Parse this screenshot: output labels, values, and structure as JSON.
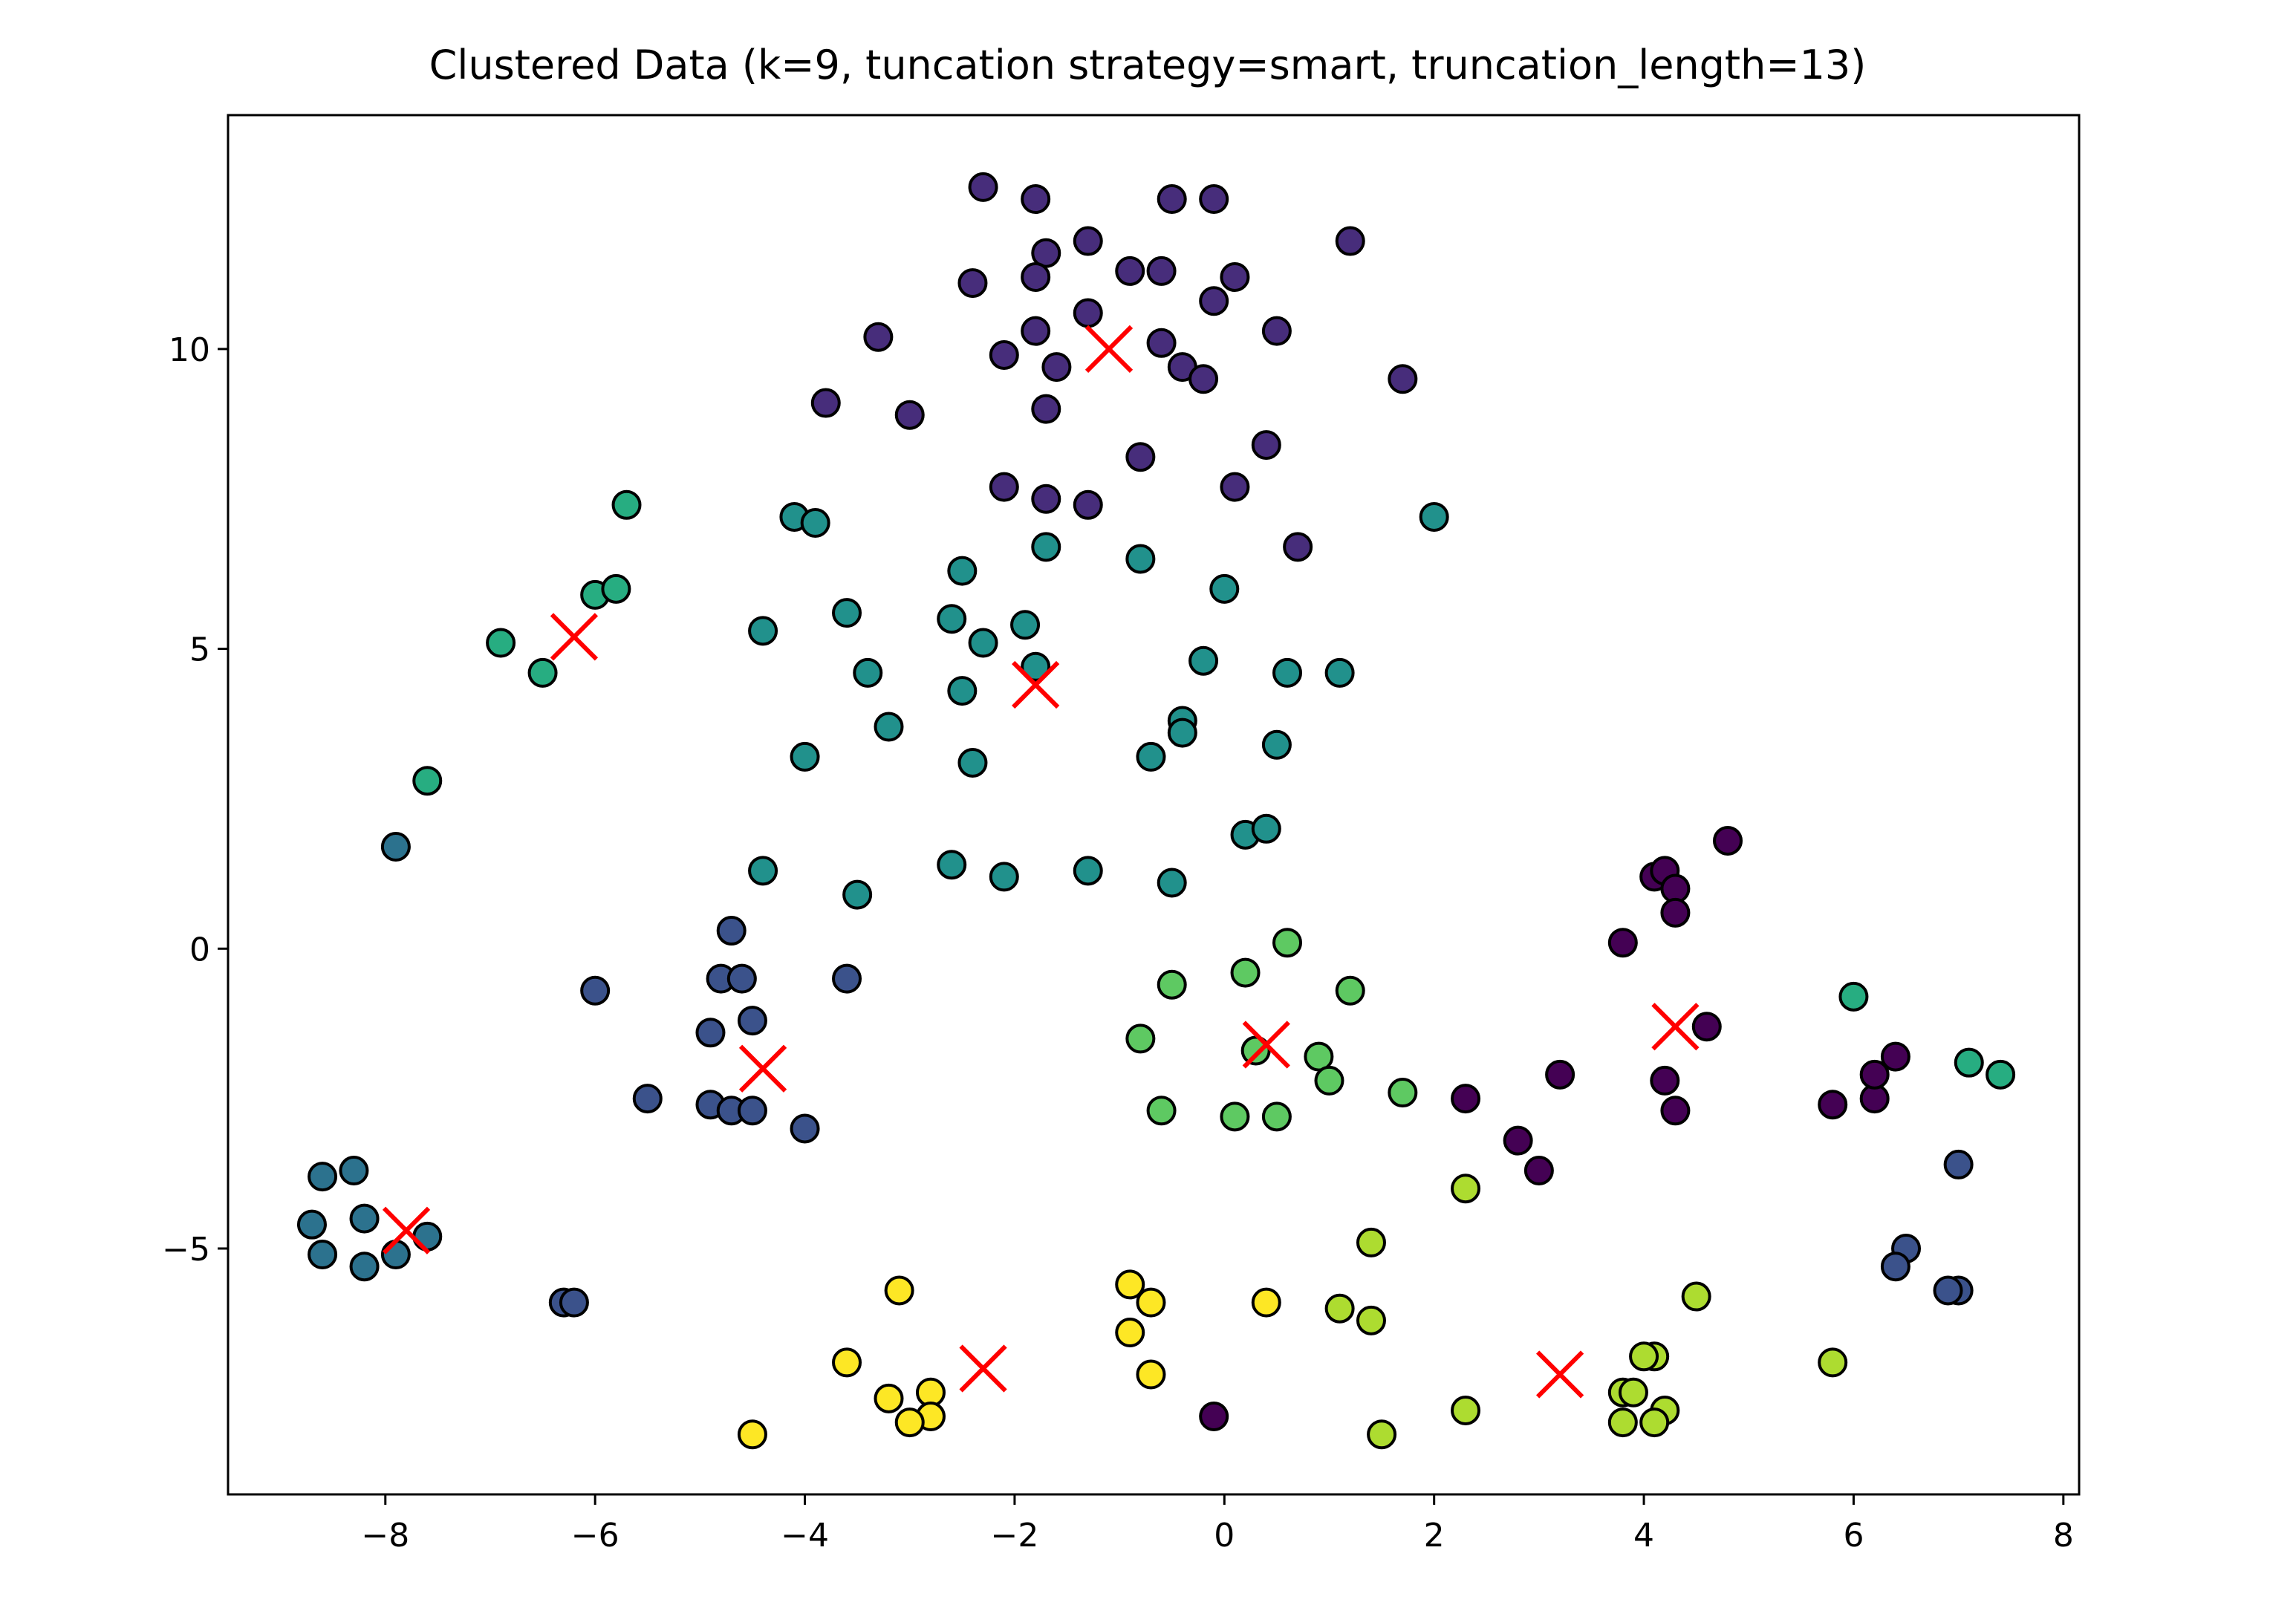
{
  "chart_data": {
    "type": "scatter",
    "title": "Clustered Data (k=9, tuncation strategy=smart, truncation_length=13)",
    "xlabel": "",
    "ylabel": "",
    "xlim": [
      -9.5,
      8.15
    ],
    "ylim": [
      -9.1,
      13.9
    ],
    "xticks": [
      -8,
      -6,
      -4,
      -2,
      0,
      2,
      4,
      6,
      8
    ],
    "yticks": [
      -5,
      0,
      5,
      10
    ],
    "grid": false,
    "legend": "none",
    "point_edge_color": "#000000",
    "centroid_marker": "x",
    "centroid_color": "#ff0000",
    "clusters": [
      {
        "color": "#440154",
        "points": [
          [
            3.8,
            0.1
          ],
          [
            4.1,
            1.2
          ],
          [
            4.2,
            1.3
          ],
          [
            4.3,
            1.0
          ],
          [
            4.8,
            1.8
          ],
          [
            4.3,
            0.6
          ],
          [
            4.6,
            -1.3
          ],
          [
            4.2,
            -2.2
          ],
          [
            4.3,
            -2.7
          ],
          [
            2.3,
            -2.5
          ],
          [
            3.2,
            -2.1
          ],
          [
            2.8,
            -3.2
          ],
          [
            3.0,
            -3.7
          ],
          [
            5.8,
            -2.6
          ],
          [
            6.2,
            -2.5
          ],
          [
            6.2,
            -2.1
          ],
          [
            6.4,
            -1.8
          ],
          [
            -0.1,
            -7.8
          ]
        ],
        "centroid": [
          4.3,
          -1.3
        ]
      },
      {
        "color": "#472d7b",
        "points": [
          [
            -2.3,
            12.7
          ],
          [
            -1.8,
            12.5
          ],
          [
            -0.5,
            12.5
          ],
          [
            -0.1,
            12.5
          ],
          [
            1.2,
            11.8
          ],
          [
            -1.3,
            11.8
          ],
          [
            -1.7,
            11.6
          ],
          [
            -2.4,
            11.1
          ],
          [
            -1.8,
            11.2
          ],
          [
            -0.9,
            11.3
          ],
          [
            -0.6,
            11.3
          ],
          [
            0.1,
            11.2
          ],
          [
            -0.1,
            10.8
          ],
          [
            -1.3,
            10.6
          ],
          [
            -1.8,
            10.3
          ],
          [
            0.5,
            10.3
          ],
          [
            -3.3,
            10.2
          ],
          [
            -2.1,
            9.9
          ],
          [
            -0.6,
            10.1
          ],
          [
            -0.4,
            9.7
          ],
          [
            -1.6,
            9.7
          ],
          [
            -0.2,
            9.5
          ],
          [
            1.7,
            9.5
          ],
          [
            -3.8,
            9.1
          ],
          [
            -1.7,
            9.0
          ],
          [
            -3.0,
            8.9
          ],
          [
            0.4,
            8.4
          ],
          [
            -0.8,
            8.2
          ],
          [
            -2.1,
            7.7
          ],
          [
            0.1,
            7.7
          ],
          [
            -1.7,
            7.5
          ],
          [
            -1.3,
            7.4
          ],
          [
            0.7,
            6.7
          ]
        ],
        "centroid": [
          -1.1,
          10.0
        ]
      },
      {
        "color": "#3b528b",
        "points": [
          [
            -4.7,
            0.3
          ],
          [
            -4.8,
            -0.5
          ],
          [
            -4.6,
            -0.5
          ],
          [
            -6.0,
            -0.7
          ],
          [
            -3.6,
            -0.5
          ],
          [
            -4.5,
            -1.2
          ],
          [
            -4.9,
            -1.4
          ],
          [
            -5.5,
            -2.5
          ],
          [
            -4.9,
            -2.6
          ],
          [
            -4.7,
            -2.7
          ],
          [
            -4.5,
            -2.7
          ],
          [
            -4.0,
            -3.0
          ],
          [
            -6.3,
            -5.9
          ],
          [
            -6.2,
            -5.9
          ],
          [
            6.5,
            -5.0
          ],
          [
            6.4,
            -5.3
          ],
          [
            7.0,
            -3.6
          ],
          [
            7.0,
            -5.7
          ],
          [
            6.9,
            -5.7
          ]
        ],
        "centroid": [
          -4.4,
          -2.0
        ]
      },
      {
        "color": "#2c728e",
        "points": [
          [
            -7.9,
            1.7
          ],
          [
            -8.3,
            -3.7
          ],
          [
            -8.6,
            -3.8
          ],
          [
            -8.7,
            -4.6
          ],
          [
            -8.2,
            -4.5
          ],
          [
            -8.6,
            -5.1
          ],
          [
            -8.2,
            -5.3
          ],
          [
            -7.9,
            -5.1
          ],
          [
            -7.6,
            -4.8
          ]
        ],
        "centroid": [
          -7.8,
          -4.7
        ]
      },
      {
        "color": "#21918c",
        "points": [
          [
            -4.1,
            7.2
          ],
          [
            -3.9,
            7.1
          ],
          [
            -1.7,
            6.7
          ],
          [
            -0.8,
            6.5
          ],
          [
            2.0,
            7.2
          ],
          [
            -2.5,
            6.3
          ],
          [
            -3.6,
            5.6
          ],
          [
            -2.6,
            5.5
          ],
          [
            -1.9,
            5.4
          ],
          [
            0.0,
            6.0
          ],
          [
            -4.4,
            5.3
          ],
          [
            -2.3,
            5.1
          ],
          [
            -3.4,
            4.6
          ],
          [
            -1.8,
            4.7
          ],
          [
            -0.2,
            4.8
          ],
          [
            0.6,
            4.6
          ],
          [
            1.1,
            4.6
          ],
          [
            -2.5,
            4.3
          ],
          [
            -0.4,
            3.8
          ],
          [
            -0.4,
            3.6
          ],
          [
            -3.2,
            3.7
          ],
          [
            0.5,
            3.4
          ],
          [
            -4.0,
            3.2
          ],
          [
            -0.7,
            3.2
          ],
          [
            -2.4,
            3.1
          ],
          [
            0.2,
            1.9
          ],
          [
            0.4,
            2.0
          ],
          [
            -4.4,
            1.3
          ],
          [
            -2.6,
            1.4
          ],
          [
            -2.1,
            1.2
          ],
          [
            -1.3,
            1.3
          ],
          [
            -0.5,
            1.1
          ],
          [
            -3.5,
            0.9
          ]
        ],
        "centroid": [
          -1.8,
          4.4
        ]
      },
      {
        "color": "#27ad81",
        "points": [
          [
            -5.7,
            7.4
          ],
          [
            -6.0,
            5.9
          ],
          [
            -5.8,
            6.0
          ],
          [
            -6.9,
            5.1
          ],
          [
            -6.5,
            4.6
          ],
          [
            -7.6,
            2.8
          ],
          [
            6.0,
            -0.8
          ],
          [
            7.1,
            -1.9
          ],
          [
            7.4,
            -2.1
          ]
        ],
        "centroid": [
          -6.2,
          5.2
        ]
      },
      {
        "color": "#5ec962",
        "points": [
          [
            0.6,
            0.1
          ],
          [
            0.2,
            -0.4
          ],
          [
            -0.5,
            -0.6
          ],
          [
            1.2,
            -0.7
          ],
          [
            -0.8,
            -1.5
          ],
          [
            0.3,
            -1.7
          ],
          [
            0.9,
            -1.8
          ],
          [
            1.0,
            -2.2
          ],
          [
            1.7,
            -2.4
          ],
          [
            -0.6,
            -2.7
          ],
          [
            0.1,
            -2.8
          ],
          [
            0.5,
            -2.8
          ]
        ],
        "centroid": [
          0.4,
          -1.6
        ]
      },
      {
        "color": "#addc30",
        "points": [
          [
            2.3,
            -4.0
          ],
          [
            1.4,
            -4.9
          ],
          [
            4.5,
            -5.8
          ],
          [
            1.1,
            -6.0
          ],
          [
            1.4,
            -6.2
          ],
          [
            5.8,
            -6.9
          ],
          [
            4.1,
            -6.8
          ],
          [
            4.0,
            -6.8
          ],
          [
            3.8,
            -7.4
          ],
          [
            3.9,
            -7.4
          ],
          [
            2.3,
            -7.7
          ],
          [
            4.2,
            -7.7
          ],
          [
            3.8,
            -7.9
          ],
          [
            4.1,
            -7.9
          ],
          [
            1.5,
            -8.1
          ]
        ],
        "centroid": [
          3.2,
          -7.1
        ]
      },
      {
        "color": "#fde725",
        "points": [
          [
            -3.1,
            -5.7
          ],
          [
            -0.9,
            -5.6
          ],
          [
            -0.7,
            -5.9
          ],
          [
            0.4,
            -5.9
          ],
          [
            -0.9,
            -6.4
          ],
          [
            -3.6,
            -6.9
          ],
          [
            -0.7,
            -7.1
          ],
          [
            -2.8,
            -7.4
          ],
          [
            -3.2,
            -7.5
          ],
          [
            -2.8,
            -7.8
          ],
          [
            -3.0,
            -7.9
          ],
          [
            -4.5,
            -8.1
          ]
        ],
        "centroid": [
          -2.3,
          -7.0
        ]
      }
    ]
  }
}
